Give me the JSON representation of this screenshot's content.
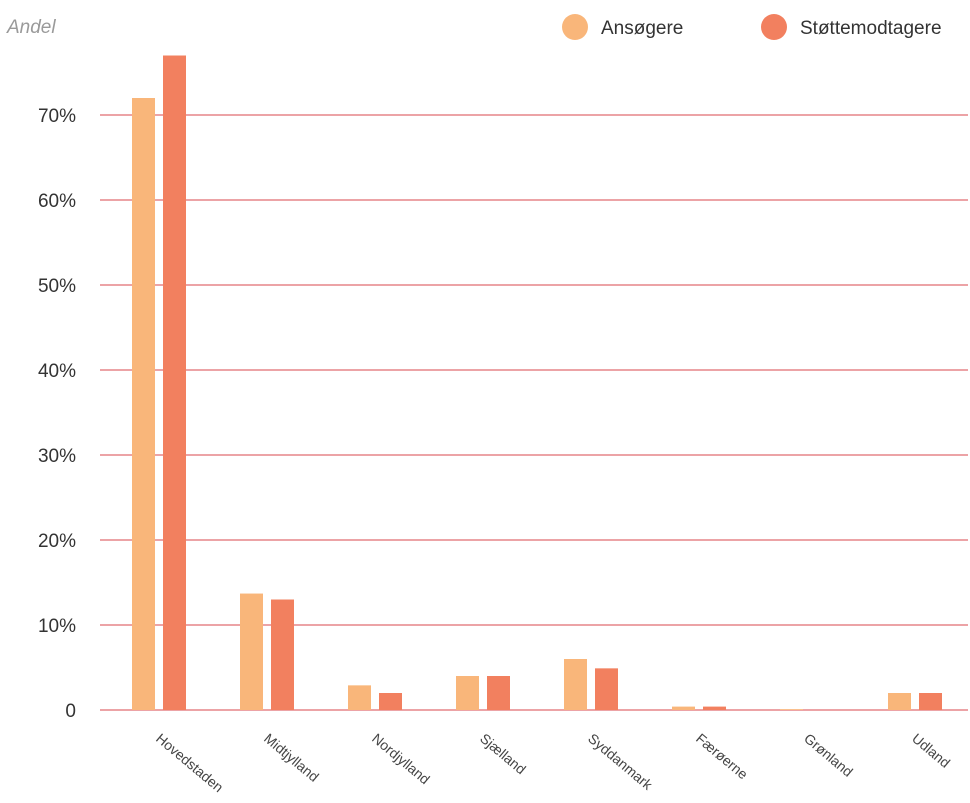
{
  "chart_data": {
    "type": "bar",
    "ylabel": "Andel",
    "categories": [
      "Hovedstaden",
      "Midtjylland",
      "Nordjylland",
      "Sjælland",
      "Syddanmark",
      "Færøerne",
      "Grønland",
      "Udland"
    ],
    "series": [
      {
        "name": "Ansøgere",
        "color": "#F9B67A",
        "values": [
          72,
          13.7,
          2.9,
          4,
          6,
          0.4,
          0.1,
          2
        ]
      },
      {
        "name": "Støttemodtagere",
        "color": "#F2805F",
        "values": [
          77,
          13,
          2,
          4,
          4.9,
          0.4,
          0,
          2
        ]
      }
    ],
    "yticks": [
      "0",
      "10%",
      "20%",
      "30%",
      "40%",
      "50%",
      "60%",
      "70%"
    ],
    "ylim": [
      0,
      80
    ],
    "grid": true,
    "gridline_color": "#D9474E",
    "legend_position": "top-right"
  }
}
